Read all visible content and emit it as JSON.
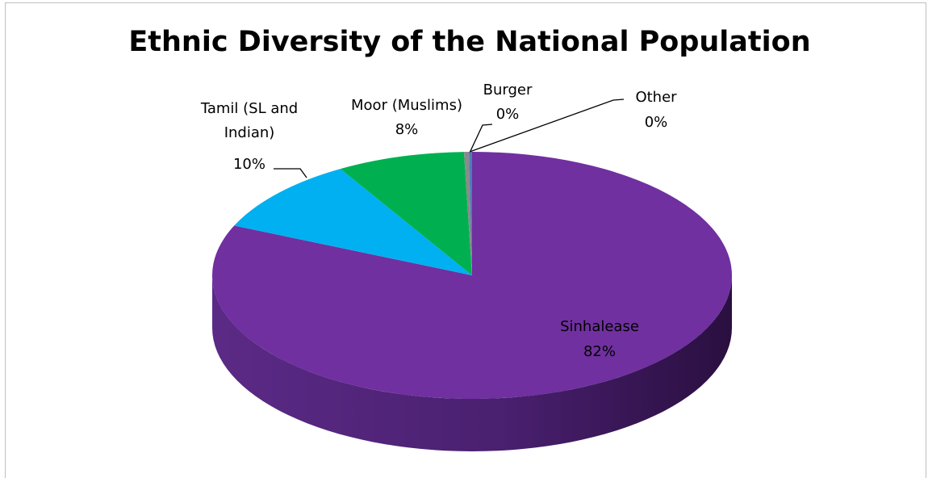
{
  "chart_data": {
    "type": "pie",
    "title": "Ethnic Diversity of the National Population",
    "slices": [
      {
        "label": "Sinhalease",
        "value": 82,
        "display": "82%",
        "color": "#7030a0"
      },
      {
        "label": "Tamil (SL and Indian)",
        "label_lines": [
          "Tamil (SL and",
          "Indian)"
        ],
        "value": 10,
        "display": "10%",
        "color": "#00b0f0"
      },
      {
        "label": "Moor (Muslims)",
        "value": 8,
        "display": "8%",
        "color": "#00b050"
      },
      {
        "label": "Burger",
        "value": 0.3,
        "display": "0%",
        "color": "#8a8a8a"
      },
      {
        "label": "Other",
        "value": 0.2,
        "display": "0%",
        "color": "#4a7ebb"
      }
    ],
    "legend": "none",
    "style": "3d-pie"
  }
}
